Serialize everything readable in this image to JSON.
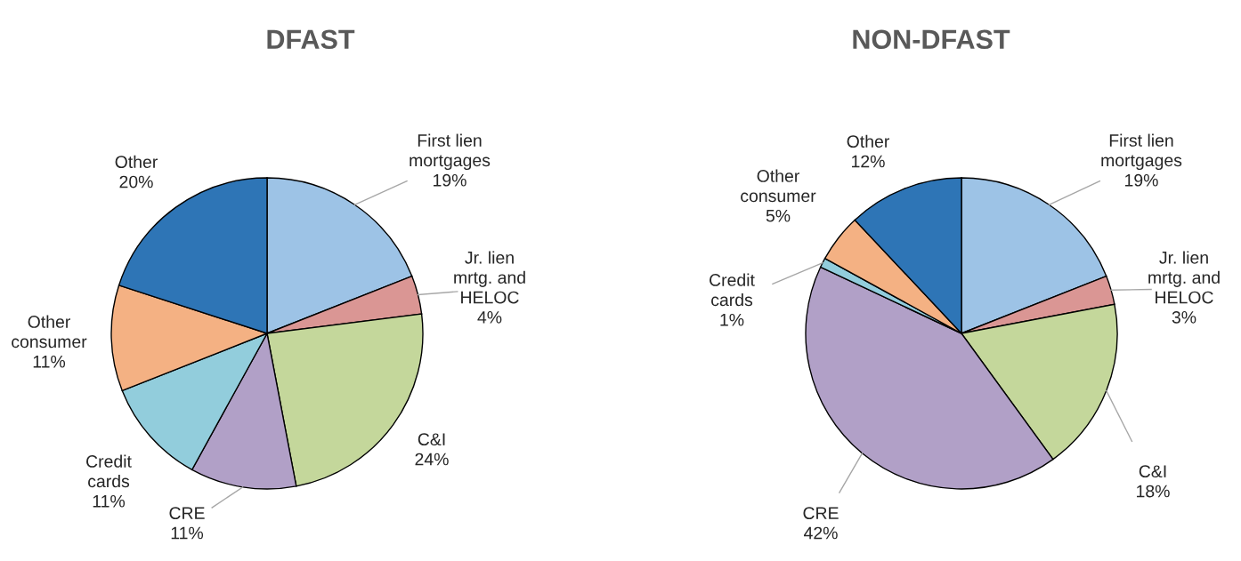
{
  "chart_data": [
    {
      "type": "pie",
      "title": "DFAST",
      "categories": [
        "First lien\nmortgages",
        "Jr. lien\nmrtg. and\nHELOC",
        "C&I",
        "CRE",
        "Credit\ncards",
        "Other\nconsumer",
        "Other"
      ],
      "values": [
        19,
        4,
        24,
        11,
        11,
        11,
        20
      ],
      "value_labels": [
        "19%",
        "4%",
        "24%",
        "11%",
        "11%",
        "11%",
        "20%"
      ],
      "colors": [
        "#9dc3e6",
        "#da9694",
        "#c4d79b",
        "#b1a0c7",
        "#92cddc",
        "#f4b183",
        "#2e75b6"
      ],
      "legend": false
    },
    {
      "type": "pie",
      "title": "NON-DFAST",
      "categories": [
        "First lien\nmortgages",
        "Jr. lien\nmrtg. and\nHELOC",
        "C&I",
        "CRE",
        "Credit\ncards",
        "Other\nconsumer",
        "Other"
      ],
      "values": [
        19,
        3,
        18,
        42,
        1,
        5,
        12
      ],
      "value_labels": [
        "19%",
        "3%",
        "18%",
        "42%",
        "1%",
        "5%",
        "12%"
      ],
      "colors": [
        "#9dc3e6",
        "#da9694",
        "#c4d79b",
        "#b1a0c7",
        "#92cddc",
        "#f4b183",
        "#2e75b6"
      ],
      "legend": false
    }
  ]
}
